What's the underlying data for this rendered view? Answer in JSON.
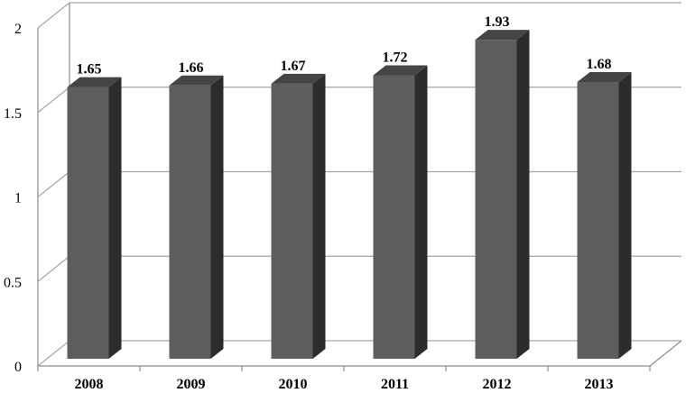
{
  "chart_data": {
    "type": "bar",
    "style": "3d-column",
    "categories": [
      "2008",
      "2009",
      "2010",
      "2011",
      "2012",
      "2013"
    ],
    "values": [
      1.65,
      1.66,
      1.67,
      1.72,
      1.93,
      1.68
    ],
    "data_labels": [
      "1.65",
      "1.66",
      "1.67",
      "1.72",
      "1.93",
      "1.68"
    ],
    "y_ticks": [
      "0",
      "0.5",
      "1",
      "1.5",
      "2"
    ],
    "ylim": [
      0,
      2
    ],
    "grid": true,
    "legend": "none",
    "title": "",
    "xlabel": "",
    "ylabel": "",
    "colors": {
      "bar_front": "#5d5d5d",
      "bar_top": "#454545",
      "bar_side": "#2c2c2c",
      "grid": "#a6a6a6",
      "axis": "#8c8c8c"
    }
  }
}
